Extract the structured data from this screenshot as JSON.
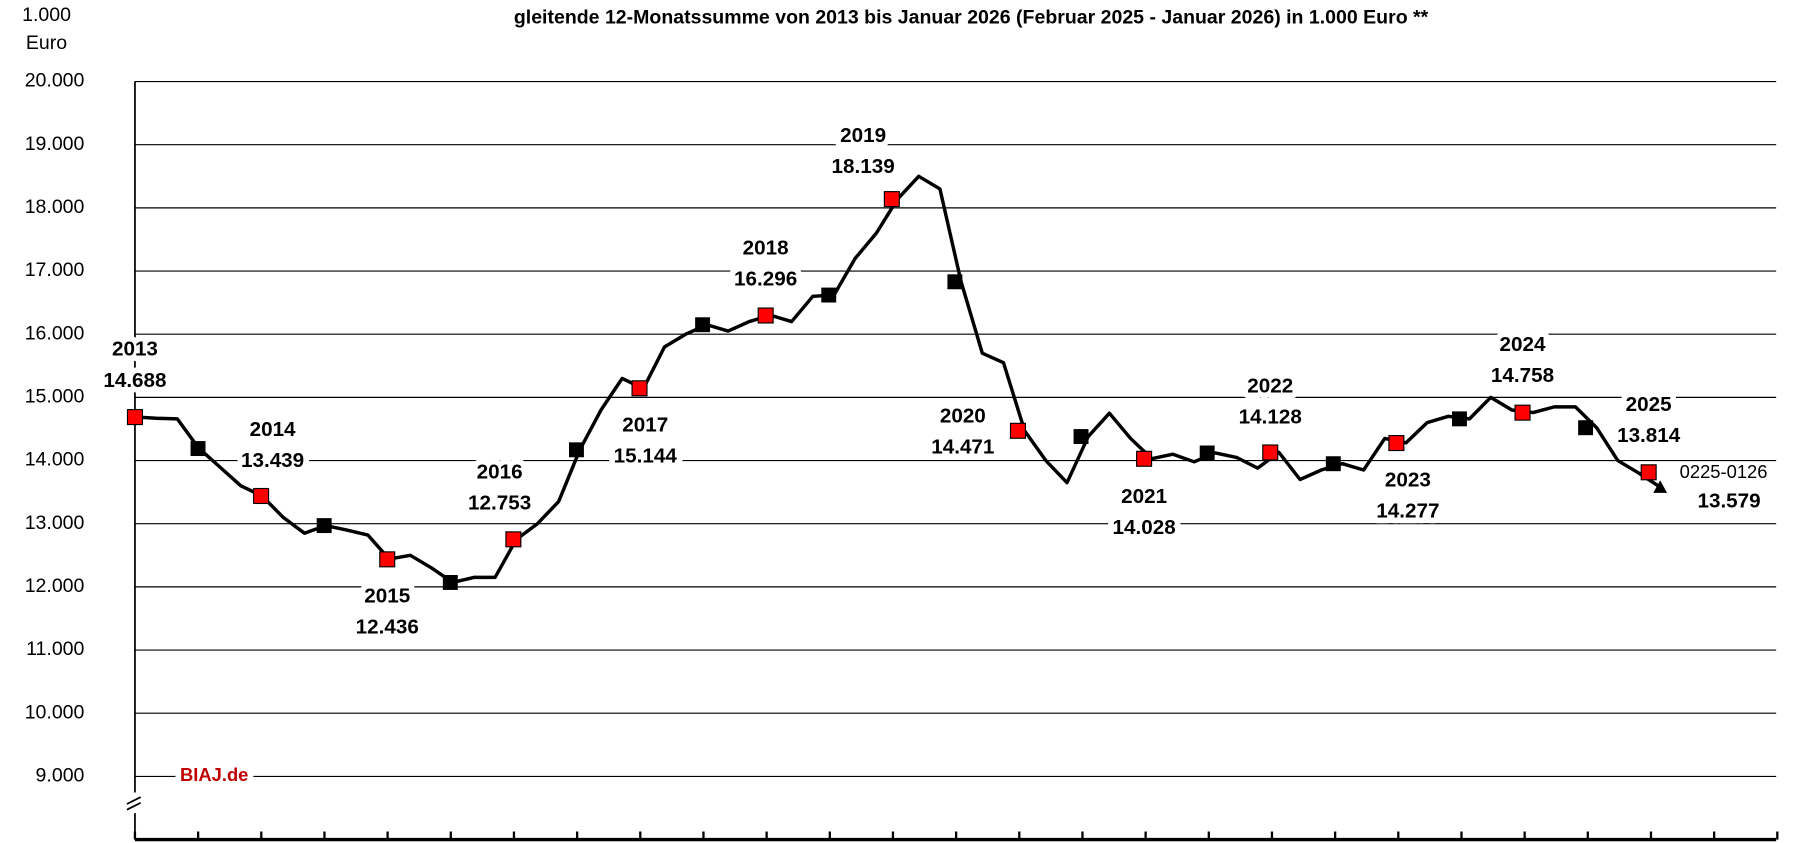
{
  "chart_data": {
    "type": "line",
    "title": "gleitende 12-Monatssumme von 2013 bis Januar 2026 (Februar 2025 - Januar 2026) in 1.000 Euro **",
    "y_unit": [
      "1.000",
      "Euro"
    ],
    "watermark": "BIAJ.de",
    "ylim": [
      8000,
      20000
    ],
    "yticks": [
      {
        "value": 9000,
        "label": "9.000"
      },
      {
        "value": 10000,
        "label": "10.000"
      },
      {
        "value": 11000,
        "label": "11.000"
      },
      {
        "value": 12000,
        "label": "12.000"
      },
      {
        "value": 13000,
        "label": "13.000"
      },
      {
        "value": 14000,
        "label": "14.000"
      },
      {
        "value": 15000,
        "label": "15.000"
      },
      {
        "value": 16000,
        "label": "16.000"
      },
      {
        "value": 17000,
        "label": "17.000"
      },
      {
        "value": 18000,
        "label": "18.000"
      },
      {
        "value": 19000,
        "label": "19.000"
      },
      {
        "value": 20000,
        "label": "20.000"
      }
    ],
    "grid": true,
    "series": [
      {
        "color": "#000000",
        "values": [
          14690,
          14670,
          14660,
          14200,
          13900,
          13600,
          13440,
          13100,
          12850,
          12970,
          12900,
          12820,
          12440,
          12500,
          12300,
          12070,
          12150,
          12150,
          12750,
          13000,
          13350,
          14170,
          14800,
          15300,
          15140,
          15800,
          16000,
          16150,
          16050,
          16200,
          16300,
          16200,
          16600,
          16620,
          17200,
          17600,
          18140,
          18500,
          18300,
          16830,
          15700,
          15550,
          14470,
          14000,
          13650,
          14380,
          14750,
          14350,
          14030,
          14100,
          13980,
          14120,
          14050,
          13880,
          14130,
          13700,
          13850,
          13950,
          13850,
          14350,
          14280,
          14600,
          14700,
          14660,
          15000,
          14800,
          14760,
          14850,
          14850,
          14520,
          14000,
          13800,
          13579
        ]
      }
    ],
    "last_label": "0225-0126",
    "last_value_label": "13.579",
    "year_markers": {
      "color": "#ff0000",
      "labels": [
        "2013",
        "2014",
        "2015",
        "2016",
        "2017",
        "2018",
        "2019",
        "2020",
        "2021",
        "2022",
        "2023",
        "2024",
        "2025"
      ],
      "values": [
        14688,
        13439,
        12436,
        12753,
        15144,
        16296,
        18139,
        14471,
        14028,
        14128,
        14277,
        14758,
        13814
      ],
      "value_labels": [
        "14.688",
        "13.439",
        "12.436",
        "12.753",
        "15.144",
        "16.296",
        "18.139",
        "14.471",
        "14.028",
        "14.128",
        "14.277",
        "14.758",
        "13.814"
      ]
    },
    "mid_markers": {
      "color": "#000000",
      "values": [
        14190,
        12970,
        12070,
        14170,
        16150,
        16620,
        16830,
        14380,
        14120,
        13950,
        14660,
        14520
      ]
    }
  }
}
